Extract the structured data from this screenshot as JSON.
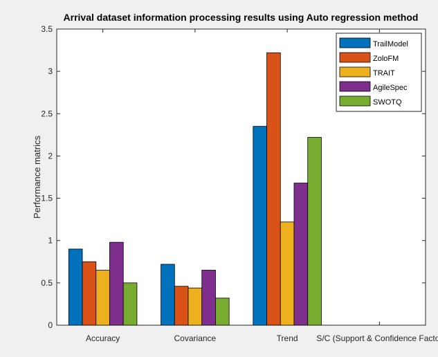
{
  "chart_data": {
    "type": "bar",
    "title": "Arrival dataset information processing results using Auto regression method",
    "xlabel": "",
    "ylabel": "Performance matrics",
    "categories": [
      "Accuracy",
      "Covariance",
      "Trend",
      "S/C (Support & Confidence Factor"
    ],
    "ylim": [
      0,
      3.5
    ],
    "yticks": [
      0,
      0.5,
      1,
      1.5,
      2,
      2.5,
      3,
      3.5
    ],
    "ytick_labels": [
      "0",
      "0.5",
      "1",
      "1.5",
      "2",
      "2.5",
      "3",
      "3.5"
    ],
    "grid": false,
    "legend_position": "top-right",
    "series": [
      {
        "name": "TrailModel",
        "color": "#0072bd",
        "values": [
          0.9,
          0.72,
          2.35,
          0
        ]
      },
      {
        "name": "ZoloFM",
        "color": "#d95319",
        "values": [
          0.75,
          0.46,
          3.22,
          0
        ]
      },
      {
        "name": "TRAIT",
        "color": "#edb120",
        "values": [
          0.65,
          0.44,
          1.22,
          0
        ]
      },
      {
        "name": "AgileSpec",
        "color": "#7e2f8e",
        "values": [
          0.98,
          0.65,
          1.68,
          0
        ]
      },
      {
        "name": "SWOTQ",
        "color": "#77ac30",
        "values": [
          0.5,
          0.32,
          2.22,
          0
        ]
      }
    ]
  }
}
